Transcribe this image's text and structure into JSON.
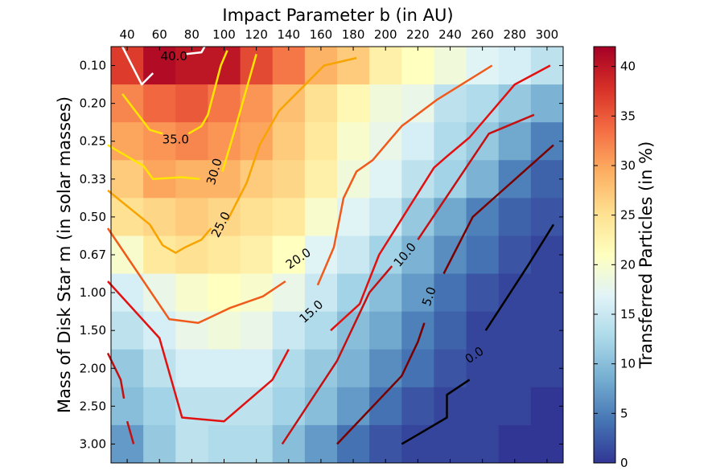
{
  "chart_data": {
    "type": "heatmap",
    "xlabel": "Impact Parameter b (in AU)",
    "ylabel": "Mass of Disk Star m (in solar masses)",
    "colorbar_label": "Transferred Particles (in %)",
    "x_categories": [
      "40",
      "60",
      "80",
      "100",
      "120",
      "140",
      "160",
      "180",
      "200",
      "220",
      "240",
      "260",
      "280",
      "300"
    ],
    "y_categories": [
      "0.10",
      "0.20",
      "0.25",
      "0.33",
      "0.50",
      "0.67",
      "1.00",
      "1.50",
      "2.00",
      "2.50",
      "3.00"
    ],
    "colorbar_ticks": [
      "0",
      "5",
      "10",
      "15",
      "20",
      "25",
      "30",
      "35",
      "40"
    ],
    "color_range": [
      0,
      42
    ],
    "colormap": [
      "#313695",
      "#4575b4",
      "#74add1",
      "#abd9e9",
      "#e0f3f8",
      "#ffffbf",
      "#fee090",
      "#fdae61",
      "#f46d43",
      "#d73027",
      "#a50026"
    ],
    "values": [
      [
        37,
        41,
        40,
        40,
        36,
        33,
        29,
        27,
        23,
        21,
        19,
        17,
        16,
        14
      ],
      [
        32,
        34,
        35,
        33,
        31,
        28,
        25,
        22,
        19,
        18,
        14,
        13,
        11,
        9
      ],
      [
        30,
        31,
        32,
        31,
        30,
        27,
        24,
        20,
        18,
        16,
        13,
        11,
        8,
        5
      ],
      [
        27,
        30,
        29,
        29,
        27,
        26,
        23,
        19,
        17,
        14,
        12,
        9,
        5,
        3
      ],
      [
        25,
        26,
        27,
        26,
        25,
        24,
        20,
        17,
        15,
        11,
        8,
        5,
        3,
        2
      ],
      [
        20,
        24,
        25,
        24,
        23,
        21,
        17,
        15,
        12,
        9,
        6,
        4,
        2,
        1
      ],
      [
        16,
        18,
        20,
        21,
        20,
        18,
        15,
        12,
        10,
        7,
        4,
        2,
        1,
        1
      ],
      [
        14,
        16,
        18,
        19,
        18,
        15,
        13,
        10,
        8,
        5,
        3,
        1,
        1,
        1
      ],
      [
        11,
        14,
        16,
        16,
        16,
        13,
        11,
        9,
        6,
        4,
        2,
        1,
        1,
        1
      ],
      [
        10,
        12,
        14,
        14,
        14,
        12,
        10,
        7,
        4,
        2,
        1,
        1,
        1,
        0
      ],
      [
        7,
        11,
        14,
        13,
        13,
        10,
        7,
        4,
        2,
        1,
        1,
        1,
        0,
        0
      ]
    ],
    "contours": [
      {
        "level": 40,
        "label": "40.0",
        "color": "#ffffff",
        "segments": [
          [
            [
              0.35,
              0
            ],
            [
              0.95,
              1.0
            ],
            [
              1.3,
              0.7
            ]
          ],
          [
            [
              2.3,
              0.2
            ],
            [
              2.8,
              0.15
            ],
            [
              2.9,
              0
            ]
          ]
        ],
        "label_pos": [
          1.95,
          0.25
        ]
      },
      {
        "level": 35,
        "label": "35.0",
        "color": "#ffe600",
        "segments": [
          [
            [
              0.35,
              1.25
            ],
            [
              1.2,
              2.2
            ],
            [
              1.6,
              2.3
            ]
          ],
          [
            [
              2.4,
              2.3
            ],
            [
              2.8,
              2.1
            ],
            [
              3.0,
              1.8
            ],
            [
              3.4,
              0.5
            ],
            [
              3.6,
              0.1
            ]
          ]
        ],
        "label_pos": [
          2.0,
          2.45
        ]
      },
      {
        "level": 30,
        "label": "30.0",
        "color": "#ffe600",
        "segments": [
          [
            [
              -0.1,
              2.6
            ],
            [
              1.0,
              3.15
            ],
            [
              1.3,
              3.5
            ],
            [
              2.2,
              3.45
            ],
            [
              2.75,
              3.5
            ]
          ],
          [
            [
              3.45,
              3.3
            ],
            [
              3.9,
              2.0
            ],
            [
              4.5,
              0.2
            ]
          ]
        ],
        "label_pos": [
          3.2,
          3.3
        ]
      },
      {
        "level": 25,
        "label": "25.0",
        "color": "#f8a400",
        "segments": [
          [
            [
              -0.1,
              3.8
            ],
            [
              1.2,
              4.7
            ],
            [
              1.6,
              5.25
            ],
            [
              2.0,
              5.45
            ],
            [
              2.3,
              5.3
            ],
            [
              2.8,
              5.1
            ],
            [
              3.1,
              4.8
            ]
          ],
          [
            [
              3.6,
              4.6
            ],
            [
              4.2,
              3.6
            ],
            [
              4.6,
              2.6
            ],
            [
              5.2,
              1.7
            ],
            [
              6.6,
              0.5
            ],
            [
              7.6,
              0.3
            ]
          ]
        ],
        "label_pos": [
          3.4,
          4.7
        ]
      },
      {
        "level": 20,
        "label": "20.0",
        "color": "#f05a1a",
        "segments": [
          [
            [
              -0.1,
              4.8
            ],
            [
              1.8,
              7.2
            ],
            [
              2.7,
              7.3
            ],
            [
              3.7,
              6.9
            ],
            [
              4.7,
              6.6
            ],
            [
              5.4,
              6.2
            ]
          ],
          [
            [
              6.4,
              6.3
            ],
            [
              6.9,
              5.3
            ],
            [
              7.2,
              4.0
            ],
            [
              7.6,
              3.3
            ],
            [
              8.1,
              3.0
            ],
            [
              8.6,
              2.5
            ],
            [
              9.0,
              2.1
            ],
            [
              10.1,
              1.4
            ],
            [
              11.8,
              0.5
            ]
          ]
        ],
        "label_pos": [
          5.8,
          5.6
        ]
      },
      {
        "level": 15,
        "label": "15.0",
        "color": "#e31010",
        "segments": [
          [
            [
              -0.1,
              6.2
            ],
            [
              1.5,
              7.7
            ],
            [
              2.2,
              9.8
            ],
            [
              3.5,
              9.9
            ],
            [
              5.0,
              8.8
            ],
            [
              5.5,
              8.0
            ]
          ],
          [
            [
              6.8,
              7.5
            ],
            [
              7.7,
              6.8
            ],
            [
              8.3,
              5.5
            ],
            [
              10.0,
              3.2
            ],
            [
              10.4,
              2.9
            ],
            [
              11.1,
              2.4
            ],
            [
              12.5,
              1.0
            ],
            [
              13.6,
              0.5
            ]
          ]
        ],
        "label_pos": [
          6.2,
          7.0
        ]
      },
      {
        "level": 10,
        "label": "10.0",
        "color": "#c41010",
        "segments": [
          [
            [
              -0.1,
              8.1
            ],
            [
              0.3,
              8.8
            ],
            [
              0.4,
              9.3
            ]
          ],
          [
            [
              0.5,
              9.9
            ],
            [
              0.7,
              10.5
            ]
          ],
          [
            [
              5.3,
              10.5
            ],
            [
              7.0,
              8.3
            ],
            [
              8.0,
              6.5
            ],
            [
              8.7,
              5.8
            ]
          ],
          [
            [
              9.5,
              5.1
            ],
            [
              11.7,
              2.3
            ],
            [
              13.1,
              1.8
            ]
          ]
        ],
        "label_pos": [
          9.1,
          5.5
        ]
      },
      {
        "level": 5,
        "label": "5.0",
        "color": "#7a0000",
        "segments": [
          [
            [
              7.0,
              10.5
            ],
            [
              9.0,
              8.7
            ],
            [
              9.5,
              7.8
            ],
            [
              9.7,
              7.3
            ]
          ],
          [
            [
              10.3,
              6.0
            ],
            [
              11.2,
              4.5
            ],
            [
              13.7,
              2.6
            ]
          ]
        ],
        "label_pos": [
          9.85,
          6.6
        ]
      },
      {
        "level": 0,
        "label": "0.0",
        "color": "#000000",
        "segments": [
          [
            [
              9.0,
              10.5
            ],
            [
              10.4,
              9.8
            ],
            [
              10.4,
              9.2
            ],
            [
              11.1,
              8.8
            ]
          ],
          [
            [
              11.6,
              7.5
            ],
            [
              12.9,
              5.8
            ],
            [
              13.7,
              4.7
            ]
          ]
        ],
        "label_pos": [
          11.25,
          8.15
        ]
      }
    ]
  }
}
